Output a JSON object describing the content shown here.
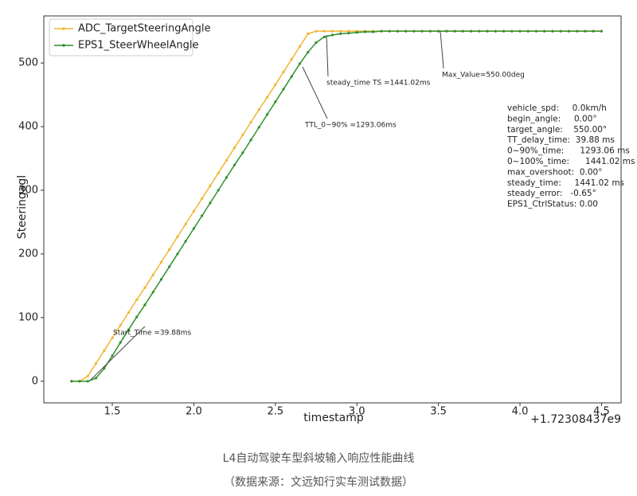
{
  "chart_data": {
    "type": "line",
    "x_label": "timestamp",
    "y_label": "Steeringagl",
    "x_offset_label": "+1.72308437e9",
    "x": [
      1.25,
      1.3,
      1.35,
      1.4,
      1.45,
      1.5,
      1.55,
      1.6,
      1.65,
      1.7,
      1.75,
      1.8,
      1.85,
      1.9,
      1.95,
      2.0,
      2.05,
      2.1,
      2.15,
      2.2,
      2.25,
      2.3,
      2.35,
      2.4,
      2.45,
      2.5,
      2.55,
      2.6,
      2.65,
      2.7,
      2.75,
      2.8,
      2.85,
      2.9,
      2.95,
      3.0,
      3.05,
      3.1,
      3.15,
      3.2,
      3.25,
      3.3,
      3.35,
      3.4,
      3.45,
      3.5,
      3.55,
      3.6,
      3.65,
      3.7,
      3.75,
      3.8,
      3.85,
      3.9,
      3.95,
      4.0,
      4.05,
      4.1,
      4.15,
      4.2,
      4.25,
      4.3,
      4.35,
      4.4,
      4.45,
      4.5
    ],
    "series": [
      {
        "name": "ADC_TargetSteeringAngle",
        "color": "#f2b530",
        "values": [
          0,
          0,
          8,
          28,
          48,
          68,
          88,
          108,
          128,
          147,
          167,
          187,
          207,
          227,
          247,
          267,
          287,
          307,
          327,
          347,
          367,
          387,
          407,
          427,
          446,
          466,
          486,
          506,
          526,
          546,
          550,
          550,
          550,
          550,
          550,
          550,
          550,
          550,
          550,
          550,
          550,
          550,
          550,
          550,
          550,
          550,
          550,
          550,
          550,
          550,
          550,
          550,
          550,
          550,
          550,
          550,
          550,
          550,
          550,
          550,
          550,
          550,
          550,
          550,
          550,
          550
        ]
      },
      {
        "name": "EPS1_SteerWheelAngle",
        "color": "#2f8f2f",
        "values": [
          0,
          0,
          0,
          5,
          20,
          40,
          61,
          81,
          101,
          120,
          140,
          160,
          180,
          200,
          220,
          240,
          260,
          280,
          300,
          320,
          340,
          359,
          379,
          399,
          419,
          439,
          459,
          479,
          499,
          517,
          532,
          541,
          544,
          546,
          547,
          548,
          549,
          549,
          550,
          550,
          550,
          550,
          550,
          550,
          550,
          550,
          550,
          550,
          550,
          550,
          550,
          550,
          550,
          550,
          550,
          550,
          550,
          550,
          550,
          550,
          550,
          550,
          550,
          550,
          550,
          550
        ]
      }
    ],
    "xlim": [
      1.08,
      4.62
    ],
    "ylim": [
      -34,
      574
    ],
    "xticks": [
      {
        "value": 1.5,
        "label": "1.5"
      },
      {
        "value": 2.0,
        "label": "2.0"
      },
      {
        "value": 2.5,
        "label": "2.5"
      },
      {
        "value": 3.0,
        "label": "3.0"
      },
      {
        "value": 3.5,
        "label": "3.5"
      },
      {
        "value": 4.0,
        "label": "4.0"
      },
      {
        "value": 4.5,
        "label": "4.5"
      }
    ],
    "yticks": [
      0,
      100,
      200,
      300,
      400,
      500
    ],
    "legend": "upper left",
    "grid": false,
    "annotations": [
      "Start_Time =39.88ms",
      "TTL_0~90% =1293.06ms",
      "steady_time TS =1441.02ms",
      "Max_Value=550.00deg"
    ],
    "stats": [
      "vehicle_spd:     0.0km/h",
      "begin_angle:     0.00°",
      "target_angle:    550.00°",
      "TT_delay_time:  39.88 ms",
      "0~90%_time:      1293.06 ms",
      "0~100%_time:      1441.02 ms",
      "max_overshoot:  0.00°",
      "steady_time:     1441.02 ms",
      "steady_error:   -0.65°",
      "EPS1_CtrlStatus: 0.00"
    ]
  },
  "captions": [
    "L4自动驾驶车型斜坡输入响应性能曲线",
    "（数据来源：文远知行实车测试数据）"
  ]
}
